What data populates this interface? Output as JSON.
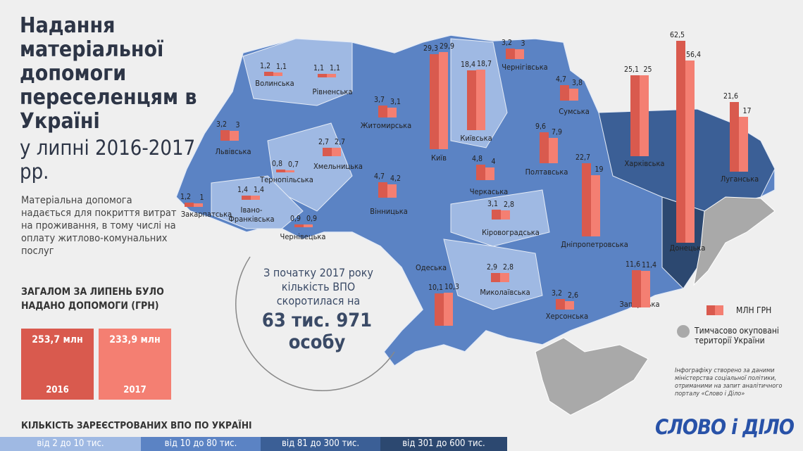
{
  "header": {
    "title": "Надання матеріальної допомоги переселенцям в Україні",
    "subtitle": "у липні 2016-2017 рр.",
    "description": "Матеріальна допомога надається для покриття витрат на проживання, в тому числі на оплату житлово-комунальних послуг"
  },
  "totals": {
    "heading": "ЗАГАЛОМ ЗА ЛИПЕНЬ БУЛО НАДАНО ДОПОМОГИ (ГРН)",
    "items": [
      {
        "label": "253,7 млн",
        "year": "2016"
      },
      {
        "label": "233,9 млн",
        "year": "2017"
      }
    ]
  },
  "note": {
    "text": "З початку 2017 року кількість ВПО скоротилася на",
    "highlight": "63 тис. 971 особу"
  },
  "legend": {
    "bars": "МЛН ГРН",
    "occupied": "Тимчасово окуповані території України"
  },
  "source": "Інфографіку створено за даними міністерства соціальної політики, отриманими на запит аналітичного порталу «Слово і Діло»",
  "scale": {
    "title": "КІЛЬКІСТЬ ЗАРЕЄСТРОВАНИХ ВПО ПО УКРАЇНІ",
    "items": [
      "від 2 до 10 тис.",
      "від 10 до 80 тис.",
      "від 81 до 300 тис.",
      "від 301 до 600 тис."
    ]
  },
  "logo": "СЛОВО і ДІЛО",
  "regions": [
    {
      "name": "Волинська",
      "values": [
        1.2,
        1.1
      ],
      "value_labels": [
        "1,2",
        "1,1"
      ]
    },
    {
      "name": "Рівненська",
      "values": [
        1.1,
        1.1
      ],
      "value_labels": [
        "1,1",
        "1,1"
      ]
    },
    {
      "name": "Житомирська",
      "values": [
        3.7,
        3.1
      ],
      "value_labels": [
        "3,7",
        "3,1"
      ]
    },
    {
      "name": "Київ",
      "values": [
        29.3,
        29.9
      ],
      "value_labels": [
        "29,3",
        "29,9"
      ]
    },
    {
      "name": "Київська",
      "values": [
        18.4,
        18.7
      ],
      "value_labels": [
        "18,4",
        "18,7"
      ]
    },
    {
      "name": "Чернігівська",
      "values": [
        3.2,
        3
      ],
      "value_labels": [
        "3,2",
        "3"
      ]
    },
    {
      "name": "Сумська",
      "values": [
        4.7,
        3.8
      ],
      "value_labels": [
        "4,7",
        "3,8"
      ]
    },
    {
      "name": "Харківська",
      "values": [
        25.1,
        25
      ],
      "value_labels": [
        "25,1",
        "25"
      ]
    },
    {
      "name": "Донецька",
      "values": [
        62.5,
        56.4
      ],
      "value_labels": [
        "62,5",
        "56,4"
      ]
    },
    {
      "name": "Луганська",
      "values": [
        21.6,
        17
      ],
      "value_labels": [
        "21,6",
        "17"
      ]
    },
    {
      "name": "Львівська",
      "values": [
        3.2,
        3
      ],
      "value_labels": [
        "3,2",
        "3"
      ]
    },
    {
      "name": "Тернопільська",
      "values": [
        0.8,
        0.7
      ],
      "value_labels": [
        "0,8",
        "0,7"
      ]
    },
    {
      "name": "Хмельницька",
      "values": [
        2.7,
        2.7
      ],
      "value_labels": [
        "2,7",
        "2,7"
      ]
    },
    {
      "name": "Вінницька",
      "values": [
        4.7,
        4.2
      ],
      "value_labels": [
        "4,7",
        "4,2"
      ]
    },
    {
      "name": "Черкаська",
      "values": [
        4.8,
        4
      ],
      "value_labels": [
        "4,8",
        "4"
      ]
    },
    {
      "name": "Полтавська",
      "values": [
        9.6,
        7.9
      ],
      "value_labels": [
        "9,6",
        "7,9"
      ]
    },
    {
      "name": "Дніпропетровська",
      "values": [
        22.7,
        19
      ],
      "value_labels": [
        "22,7",
        "19"
      ]
    },
    {
      "name": "Закарпатська",
      "values": [
        1.2,
        1
      ],
      "value_labels": [
        "1,2",
        "1"
      ]
    },
    {
      "name": "Івано-Франківська",
      "values": [
        1.4,
        1.4
      ],
      "value_labels": [
        "1,4",
        "1,4"
      ]
    },
    {
      "name": "Чернівецька",
      "values": [
        0.9,
        0.9
      ],
      "value_labels": [
        "0,9",
        "0,9"
      ]
    },
    {
      "name": "Кіровоградська",
      "values": [
        3.1,
        2.8
      ],
      "value_labels": [
        "3,1",
        "2,8"
      ]
    },
    {
      "name": "Одеська",
      "values": [
        10.1,
        10.3
      ],
      "value_labels": [
        "10,1",
        "10,3"
      ]
    },
    {
      "name": "Миколаївська",
      "values": [
        2.9,
        2.8
      ],
      "value_labels": [
        "2,9",
        "2,8"
      ]
    },
    {
      "name": "Херсонська",
      "values": [
        3.2,
        2.6
      ],
      "value_labels": [
        "3,2",
        "2,6"
      ]
    },
    {
      "name": "Запорізька",
      "values": [
        11.6,
        11.4
      ],
      "value_labels": [
        "11,6",
        "11,4"
      ]
    }
  ]
}
